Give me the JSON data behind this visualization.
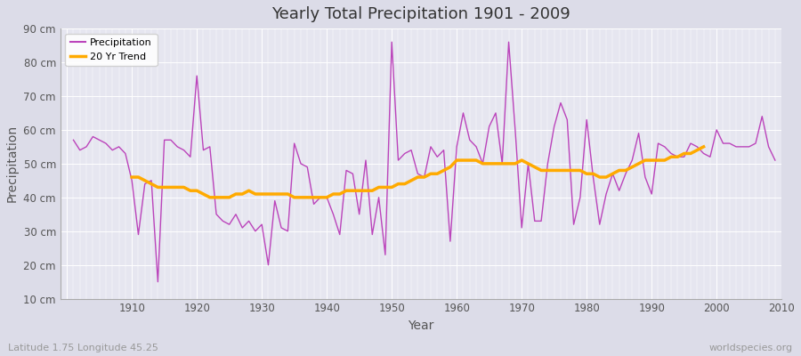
{
  "title": "Yearly Total Precipitation 1901 - 2009",
  "xlabel": "Year",
  "ylabel": "Precipitation",
  "subtitle": "Latitude 1.75 Longitude 45.25",
  "watermark": "worldspecies.org",
  "bg_color": "#dcdce8",
  "plot_bg_color": "#e6e6f0",
  "precip_color": "#bb44bb",
  "trend_color": "#ffaa00",
  "ylim": [
    10,
    90
  ],
  "yticks": [
    10,
    20,
    30,
    40,
    50,
    60,
    70,
    80,
    90
  ],
  "xlim": [
    1901,
    2009
  ],
  "years": [
    1901,
    1902,
    1903,
    1904,
    1905,
    1906,
    1907,
    1908,
    1909,
    1910,
    1911,
    1912,
    1913,
    1914,
    1915,
    1916,
    1917,
    1918,
    1919,
    1920,
    1921,
    1922,
    1923,
    1924,
    1925,
    1926,
    1927,
    1928,
    1929,
    1930,
    1931,
    1932,
    1933,
    1934,
    1935,
    1936,
    1937,
    1938,
    1939,
    1940,
    1941,
    1942,
    1943,
    1944,
    1945,
    1946,
    1947,
    1948,
    1949,
    1950,
    1951,
    1952,
    1953,
    1954,
    1955,
    1956,
    1957,
    1958,
    1959,
    1960,
    1961,
    1962,
    1963,
    1964,
    1965,
    1966,
    1967,
    1968,
    1969,
    1970,
    1971,
    1972,
    1973,
    1974,
    1975,
    1976,
    1977,
    1978,
    1979,
    1980,
    1981,
    1982,
    1983,
    1984,
    1985,
    1986,
    1987,
    1988,
    1989,
    1990,
    1991,
    1992,
    1993,
    1994,
    1995,
    1996,
    1997,
    1998,
    1999,
    2000,
    2001,
    2002,
    2003,
    2004,
    2005,
    2006,
    2007,
    2008,
    2009
  ],
  "precip": [
    57,
    54,
    55,
    58,
    57,
    56,
    54,
    55,
    53,
    45,
    29,
    44,
    45,
    15,
    57,
    57,
    55,
    54,
    52,
    76,
    54,
    55,
    35,
    33,
    32,
    35,
    31,
    33,
    30,
    32,
    20,
    39,
    31,
    30,
    56,
    50,
    49,
    38,
    40,
    40,
    35,
    29,
    48,
    47,
    35,
    51,
    29,
    40,
    23,
    86,
    51,
    53,
    54,
    47,
    46,
    55,
    52,
    54,
    27,
    55,
    65,
    57,
    55,
    50,
    61,
    65,
    50,
    86,
    60,
    31,
    50,
    33,
    33,
    50,
    61,
    68,
    63,
    32,
    40,
    63,
    46,
    32,
    41,
    47,
    42,
    47,
    51,
    59,
    46,
    41,
    56,
    55,
    53,
    52,
    52,
    56,
    55,
    53,
    52,
    60,
    56,
    56,
    55,
    55,
    55,
    56,
    64,
    55,
    51
  ],
  "trend": [
    null,
    null,
    null,
    null,
    null,
    null,
    null,
    null,
    null,
    46,
    46,
    45,
    44,
    43,
    43,
    43,
    43,
    43,
    42,
    42,
    41,
    40,
    40,
    40,
    40,
    41,
    41,
    42,
    41,
    41,
    41,
    41,
    41,
    41,
    40,
    40,
    40,
    40,
    40,
    40,
    41,
    41,
    42,
    42,
    42,
    42,
    42,
    43,
    43,
    43,
    44,
    44,
    45,
    46,
    46,
    47,
    47,
    48,
    49,
    51,
    51,
    51,
    51,
    50,
    50,
    50,
    50,
    50,
    50,
    51,
    50,
    49,
    48,
    48,
    48,
    48,
    48,
    48,
    48,
    47,
    47,
    46,
    46,
    47,
    48,
    48,
    49,
    50,
    51,
    51,
    51,
    51,
    52,
    52,
    53,
    53,
    54,
    55,
    null,
    null,
    null,
    null,
    null,
    null,
    null,
    null,
    null,
    null,
    null
  ]
}
